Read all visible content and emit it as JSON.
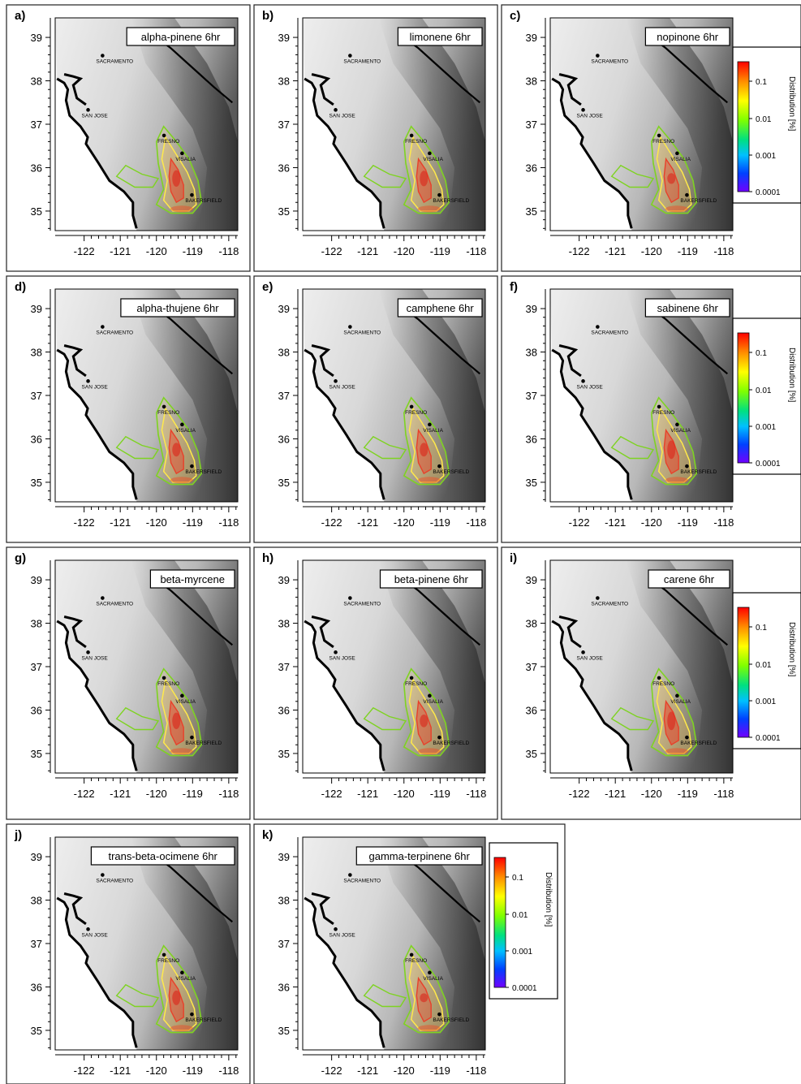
{
  "map": {
    "y_ticks": [
      "39",
      "38",
      "37",
      "36",
      "35"
    ],
    "x_ticks": [
      "-122",
      "-121",
      "-120",
      "-119",
      "-118"
    ],
    "cities": [
      {
        "name": "SACRAMENTO",
        "lon": -121.49,
        "lat": 38.58
      },
      {
        "name": "SAN JOSE",
        "lon": -121.89,
        "lat": 37.33
      },
      {
        "name": "FRESNO",
        "lon": -119.79,
        "lat": 36.74
      },
      {
        "name": "VISALIA",
        "lon": -119.29,
        "lat": 36.33
      },
      {
        "name": "BAKERSFIELD",
        "lon": -119.02,
        "lat": 35.37
      }
    ],
    "colors": {
      "terrain_low": "#e6e6e6",
      "terrain_high": "#3a3a3a",
      "coast": "#000000",
      "contour_low": "#7ed321",
      "contour_mid": "#ffe94a",
      "contour_high": "#e8402a"
    }
  },
  "panels": [
    {
      "letter": "a)",
      "title": "alpha-pinene 6hr",
      "intensity": 0.85
    },
    {
      "letter": "b)",
      "title": "limonene 6hr",
      "intensity": 0.8
    },
    {
      "letter": "c)",
      "title": "nopinone 6hr",
      "intensity": 0.55
    },
    {
      "letter": "d)",
      "title": "alpha-thujene 6hr",
      "intensity": 0.7
    },
    {
      "letter": "e)",
      "title": "camphene 6hr",
      "intensity": 0.7
    },
    {
      "letter": "f)",
      "title": "sabinene 6hr",
      "intensity": 0.95
    },
    {
      "letter": "g)",
      "title": "beta-myrcene",
      "intensity": 0.85
    },
    {
      "letter": "h)",
      "title": "beta-pinene 6hr",
      "intensity": 0.65
    },
    {
      "letter": "i)",
      "title": "carene 6hr",
      "intensity": 0.95
    },
    {
      "letter": "j)",
      "title": "trans-beta-ocimene 6hr",
      "intensity": 0.75
    },
    {
      "letter": "k)",
      "title": "gamma-terpinene 6hr",
      "intensity": 0.45
    }
  ],
  "legend": {
    "label": "Distribution [%]",
    "ticks": [
      "0.1",
      "0.01",
      "0.001",
      "0.0001"
    ],
    "gradient": [
      "#ff0000",
      "#ffa500",
      "#ffff00",
      "#7fff00",
      "#00e070",
      "#00c0ff",
      "#0040ff",
      "#6a00ff"
    ]
  }
}
